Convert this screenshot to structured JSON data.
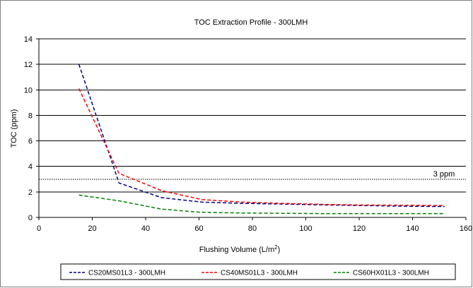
{
  "chart_data": {
    "type": "line",
    "title": "TOC Extraction Profile - 300LMH",
    "xlabel": "Flushing Volume (L/m",
    "xlabel_sup": "2",
    "xlabel_suffix": ")",
    "ylabel": "TOC (ppm)",
    "xlim": [
      0,
      160
    ],
    "ylim": [
      0,
      14
    ],
    "xticks": [
      0,
      20,
      40,
      60,
      80,
      100,
      120,
      140,
      160
    ],
    "yticks": [
      0,
      2,
      4,
      6,
      8,
      10,
      12,
      14
    ],
    "grid": "horizontal",
    "legend": "bottom",
    "reference_line": {
      "y": 3,
      "label": "3 ppm",
      "color": "#000000"
    },
    "series": [
      {
        "name": "CS20MS01L3 - 300LMH",
        "color": "#000080",
        "x": [
          15,
          30,
          46,
          61,
          76,
          91,
          107,
          122,
          137,
          152
        ],
        "y": [
          12.0,
          2.7,
          1.55,
          1.2,
          1.1,
          1.05,
          0.98,
          0.93,
          0.88,
          0.85
        ]
      },
      {
        "name": "CS40MS01L3 - 300LMH",
        "color": "#ff0000",
        "x": [
          15,
          30,
          46,
          61,
          76,
          91,
          107,
          122,
          137,
          152
        ],
        "y": [
          10.1,
          3.45,
          2.1,
          1.4,
          1.2,
          1.1,
          1.02,
          0.97,
          0.95,
          0.93
        ]
      },
      {
        "name": "CS60HX01L3 - 300LMH",
        "color": "#008000",
        "x": [
          15,
          30,
          46,
          61,
          76,
          91,
          107,
          122,
          137,
          152
        ],
        "y": [
          1.75,
          1.3,
          0.65,
          0.4,
          0.35,
          0.32,
          0.3,
          0.3,
          0.3,
          0.3
        ]
      }
    ]
  }
}
